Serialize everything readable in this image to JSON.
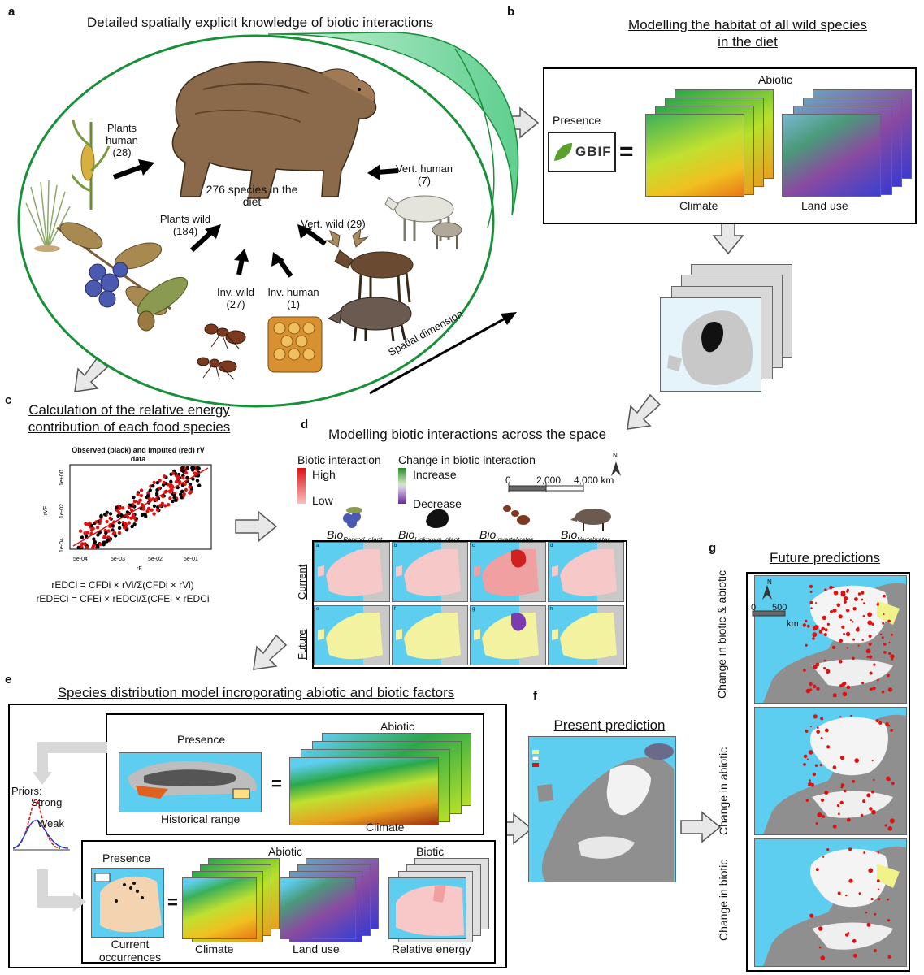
{
  "panel_a": {
    "letter": "a",
    "title": "Detailed spatially explicit knowledge of biotic interactions",
    "center": "276 species in the diet",
    "plants_human": "Plants human (28)",
    "plants_wild": "Plants wild (184)",
    "inv_wild": "Inv. wild (27)",
    "inv_human": "Inv. human (1)",
    "vert_wild": "Vert. wild (29)",
    "vert_human": "Vert. human (7)",
    "spatial": "Spatial dimension"
  },
  "panel_b": {
    "letter": "b",
    "title": "Modelling the habitat of all wild species in the diet",
    "presence": "Presence",
    "gbif": "GBIF",
    "equals": "=",
    "abiotic": "Abiotic",
    "climate": "Climate",
    "landuse": "Land use"
  },
  "panel_c": {
    "letter": "c",
    "title": "Calculation of the relative energy contribution of each food species",
    "chart_title": "Observed (black) and Imputed (red) rV data",
    "ylabel": "rVF",
    "xlabel": "rF",
    "yticks": [
      "1e-04",
      "1e-02",
      "1e+00"
    ],
    "xticks": [
      "5e-04",
      "5e-03",
      "5e-02",
      "5e-01"
    ],
    "formula1": "rEDCi = CFDi × rVi/Σ(CFDi × rVi)",
    "formula2": "rEDECi = CFEi × rEDCi/Σ(CFEi × rEDCi"
  },
  "panel_d": {
    "letter": "d",
    "title": "Modelling biotic interactions across the space",
    "legend1_title": "Biotic interaction",
    "high": "High",
    "low": "Low",
    "legend2_title": "Change in biotic interaction",
    "increase": "Increase",
    "decrease": "Decrease",
    "scale": [
      "0",
      "2,000",
      "4,000 km"
    ],
    "north": "N",
    "columns": [
      {
        "bio": "Bio",
        "sub": "Reprod_plant"
      },
      {
        "bio": "Bio",
        "sub": "Unknown_plant"
      },
      {
        "bio": "Bio",
        "sub": "Invertebrates"
      },
      {
        "bio": "Bio",
        "sub": "Vertebrates"
      }
    ],
    "row_current": "Current",
    "row_future": "Future",
    "map_letters": [
      "a",
      "b",
      "c",
      "d",
      "e",
      "f",
      "g",
      "h"
    ]
  },
  "panel_e": {
    "letter": "e",
    "title": "Species distribution model incroporating abiotic and biotic factors",
    "presence_top": "Presence",
    "historical": "Historical range",
    "abiotic_top": "Abiotic",
    "climate_top": "Climate",
    "priors": "Priors:",
    "strong": "Strong",
    "weak": "Weak",
    "presence_bottom": "Presence",
    "current_occ": "Current occurrences",
    "abiotic_bottom": "Abiotic",
    "biotic": "Biotic",
    "climate_bottom": "Climate",
    "landuse_bottom": "Land use",
    "energy": "Relative energy",
    "equals": "="
  },
  "panel_f": {
    "letter": "f",
    "title": "Present prediction"
  },
  "panel_g": {
    "letter": "g",
    "title": "Future predictions",
    "scale_zero": "0",
    "scale_500": "500",
    "scale_km": "km",
    "north": "N",
    "row1": "Change in biotic & abiotic",
    "row2": "Change in abiotic",
    "row3": "Change in biotic"
  },
  "colors": {
    "sea": "#5dcdf0",
    "land_grey": "#bdbdbd",
    "ellipse": "#1a8f3a",
    "band": "#8fdcb0",
    "red": "#e01010",
    "yellow": "#f2f28a"
  }
}
